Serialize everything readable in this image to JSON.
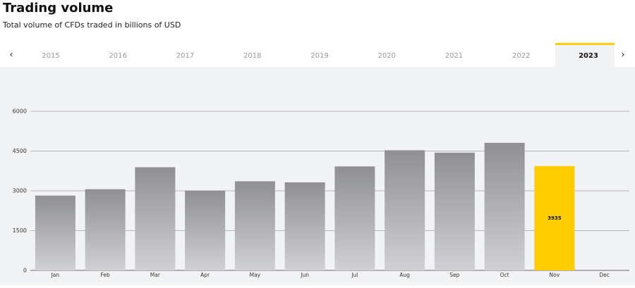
{
  "header": {
    "title": "Trading volume",
    "subtitle": "Total volume of CFDs traded in billions of USD"
  },
  "tabs": {
    "items": [
      "2015",
      "2016",
      "2017",
      "2018",
      "2019",
      "2020",
      "2021",
      "2022",
      "2023"
    ],
    "selected": 8
  },
  "chart_data": {
    "type": "bar",
    "categories": [
      "Jan",
      "Feb",
      "Mar",
      "Apr",
      "May",
      "Jun",
      "Jul",
      "Aug",
      "Sep",
      "Oct",
      "Nov",
      "Dec"
    ],
    "values": [
      2820,
      3060,
      3890,
      3010,
      3360,
      3320,
      3920,
      4530,
      4440,
      4810,
      3935,
      null
    ],
    "colors": [
      "#8f9095",
      "#8f9095",
      "#8f9095",
      "#8f9095",
      "#8f9095",
      "#8f9095",
      "#8f9095",
      "#8f9095",
      "#8f9095",
      "#8f9095",
      "#ffcc00",
      "#8f9095"
    ],
    "ylim": [
      0,
      6000
    ],
    "yticks": [
      0,
      1500,
      3000,
      4500,
      6000
    ],
    "grid": true
  }
}
